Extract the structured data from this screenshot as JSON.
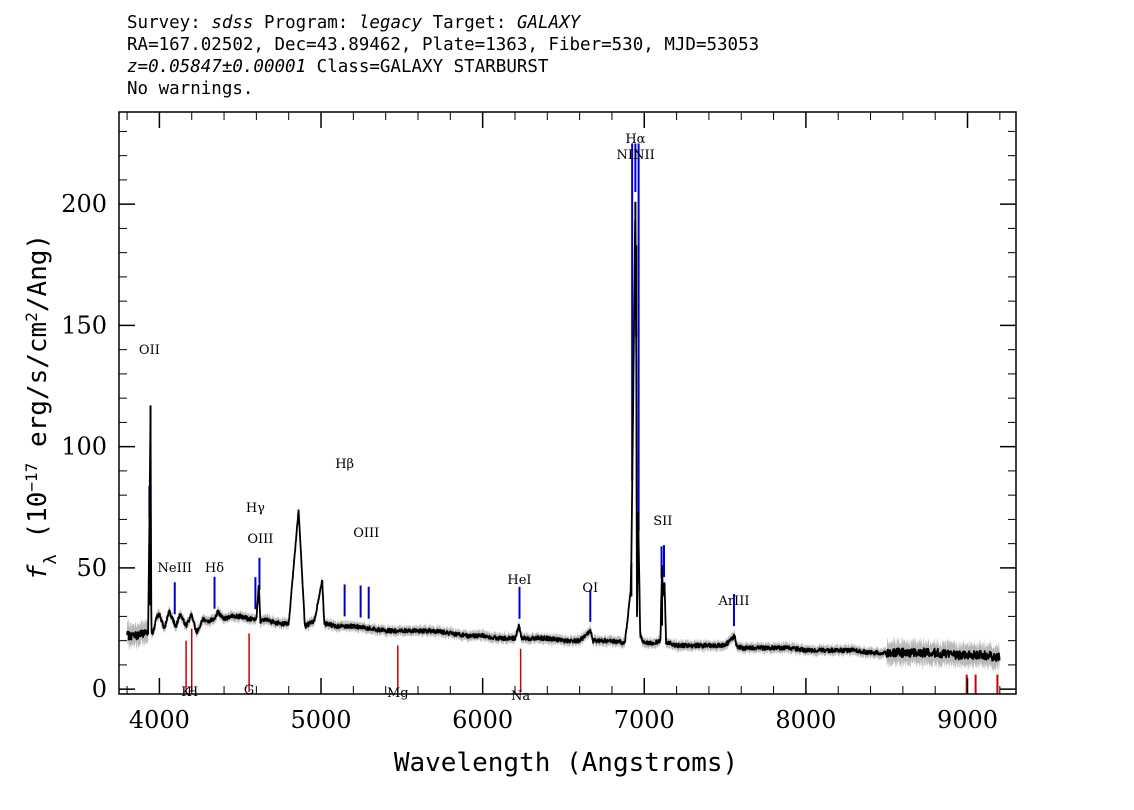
{
  "header": {
    "survey_label": "Survey:",
    "survey": "sdss",
    "program_label": "Program:",
    "program": "legacy",
    "target_label": "Target:",
    "target": "GALAXY",
    "coords": "RA=167.02502, Dec=43.89462, Plate=1363, Fiber=530, MJD=53053",
    "redshift": "z=0.05847±0.00001",
    "class": "Class=GALAXY STARBURST",
    "warnings": "No warnings."
  },
  "chart_data": {
    "type": "line",
    "xlabel": "Wavelength (Angstroms)",
    "ylabel": "f_λ (10^-17 erg/s/cm^2/Ang)",
    "xlim": [
      3750,
      9300
    ],
    "ylim": [
      -2,
      238
    ],
    "xticks": [
      4000,
      5000,
      6000,
      7000,
      8000,
      9000
    ],
    "yticks": [
      0,
      50,
      100,
      150,
      200
    ],
    "series": [
      {
        "x": [
          3800,
          3850,
          3900,
          3930,
          3940,
          3945,
          3950,
          3960,
          3980,
          4000,
          4030,
          4060,
          4101,
          4130,
          4165,
          4200,
          4230,
          4270,
          4300,
          4340,
          4360,
          4400,
          4450,
          4500,
          4550,
          4600,
          4615,
          4625,
          4640,
          4680,
          4750,
          4800,
          4861,
          4900,
          4959,
          5007,
          5020,
          5100,
          5200,
          5300,
          5400,
          5500,
          5580,
          5600,
          5700,
          5800,
          5900,
          6000,
          6100,
          6200,
          6225,
          6240,
          6300,
          6400,
          6500,
          6600,
          6670,
          6680,
          6700,
          6800,
          6880,
          6915,
          6920,
          6945,
          6950,
          6955,
          6962,
          6975,
          6990,
          7010,
          7050,
          7100,
          7110,
          7115,
          7125,
          7135,
          7150,
          7200,
          7300,
          7400,
          7500,
          7560,
          7570,
          7600,
          7700,
          7800,
          7900,
          8000,
          8100,
          8200,
          8300,
          8400,
          8500,
          8600,
          8700,
          8800,
          8900,
          9000,
          9100,
          9200
        ],
        "values": [
          22,
          22,
          23,
          24,
          77,
          117,
          24,
          23,
          29,
          31,
          25,
          32,
          26,
          31,
          26,
          31,
          23,
          29,
          28,
          29,
          32,
          29,
          30,
          30,
          29,
          29,
          43,
          28,
          29,
          28,
          27,
          27,
          74,
          26,
          28,
          45,
          27,
          26,
          26,
          25,
          24,
          24,
          24,
          24,
          24,
          23,
          22,
          22,
          21,
          21,
          26,
          21,
          21,
          21,
          20,
          20,
          24,
          20,
          20,
          20,
          19,
          40,
          52,
          201,
          145,
          25,
          73,
          22,
          20,
          19,
          19,
          20,
          51,
          38,
          44,
          19,
          19,
          18,
          18,
          18,
          18,
          22,
          18,
          17,
          17,
          17,
          17,
          16,
          16,
          16,
          16,
          15,
          15,
          15,
          15,
          15,
          14,
          14,
          14,
          13
        ]
      }
    ],
    "emission_lines": [
      {
        "label": "OII",
        "wavelength": 3938
      },
      {
        "label": "NeIII",
        "wavelength": 4095
      },
      {
        "label": "Hδ",
        "wavelength": 4341
      },
      {
        "label": "Hγ",
        "wavelength": 4594
      },
      {
        "label": "OIII",
        "wavelength": 4619
      },
      {
        "label": "Hβ",
        "wavelength": 5146
      },
      {
        "label": "OIII",
        "wavelength": 5245
      },
      {
        "label": "OIII",
        "wavelength": 5295
      },
      {
        "label": "HeI",
        "wavelength": 6228
      },
      {
        "label": "OI",
        "wavelength": 6666
      },
      {
        "label": "NII",
        "wavelength": 6925
      },
      {
        "label": "Hα",
        "wavelength": 6945
      },
      {
        "label": "NII",
        "wavelength": 6965
      },
      {
        "label": "SII",
        "wavelength": 7107
      },
      {
        "label": "SII",
        "wavelength": 7122
      },
      {
        "label": "ArIII",
        "wavelength": 7555
      }
    ],
    "absorption_lines": [
      {
        "label": "K",
        "wavelength": 4165
      },
      {
        "label": "H",
        "wavelength": 4200
      },
      {
        "label": "G",
        "wavelength": 4555
      },
      {
        "label": "Mg",
        "wavelength": 5475
      },
      {
        "label": "Na",
        "wavelength": 6235
      },
      {
        "label": "",
        "wavelength": 8995
      },
      {
        "label": "",
        "wavelength": 9050
      },
      {
        "label": "",
        "wavelength": 9185
      }
    ],
    "colors": {
      "spectrum": "#000000",
      "noise": "#b0b0b0",
      "emission_marker": "#0000cc",
      "absorption_marker": "#cc0000"
    }
  }
}
